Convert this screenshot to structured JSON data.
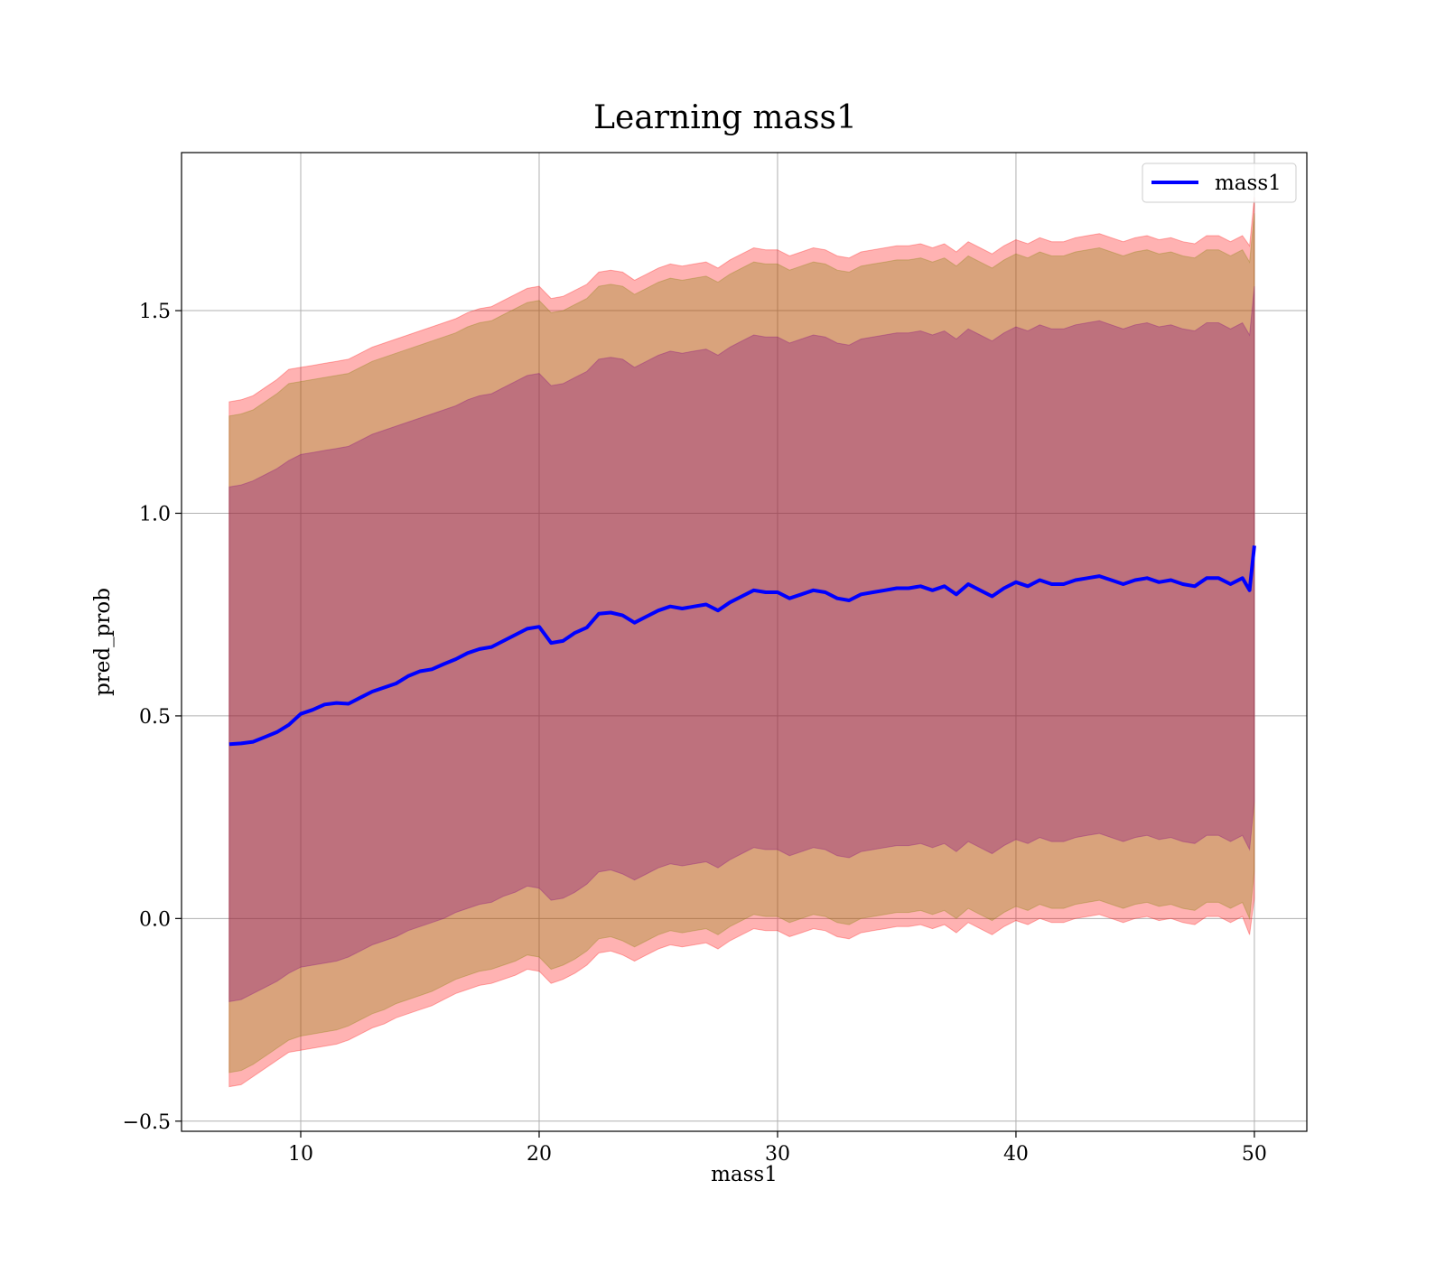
{
  "chart_data": {
    "type": "line",
    "title": "Learning mass1",
    "xlabel": "mass1",
    "ylabel": "pred_prob",
    "xlim": [
      5,
      52.2
    ],
    "ylim": [
      -0.525,
      1.89
    ],
    "xticks": [
      10,
      20,
      30,
      40,
      50
    ],
    "xtick_labels": [
      "10",
      "20",
      "30",
      "40",
      "50"
    ],
    "yticks": [
      -0.5,
      0.0,
      0.5,
      1.0,
      1.5
    ],
    "ytick_labels": [
      "−0.5",
      "0.0",
      "0.5",
      "1.0",
      "1.5"
    ],
    "grid": true,
    "legend": {
      "position": "top-right",
      "entries": [
        {
          "label": "mass1",
          "color": "#0000ff"
        }
      ]
    },
    "series": [
      {
        "name": "mass1",
        "color": "#0000ff",
        "x": [
          7,
          7.5,
          8,
          8.5,
          9,
          9.5,
          10,
          10.5,
          11,
          11.5,
          12,
          12.5,
          13,
          13.5,
          14,
          14.5,
          15,
          15.5,
          16,
          16.5,
          17,
          17.5,
          18,
          18.5,
          19,
          19.5,
          20,
          20.5,
          21,
          21.5,
          22,
          22.5,
          23,
          23.5,
          24,
          24.5,
          25,
          25.5,
          26,
          26.5,
          27,
          27.5,
          28,
          28.5,
          29,
          29.5,
          30,
          30.5,
          31,
          31.5,
          32,
          32.5,
          33,
          33.5,
          34,
          34.5,
          35,
          35.5,
          36,
          36.5,
          37,
          37.5,
          38,
          38.5,
          39,
          39.5,
          40,
          40.5,
          41,
          41.5,
          42,
          42.5,
          43,
          43.5,
          44,
          44.5,
          45,
          45.5,
          46,
          46.5,
          47,
          47.5,
          48,
          48.5,
          49,
          49.5,
          49.8,
          50
        ],
        "y": [
          0.43,
          0.432,
          0.436,
          0.448,
          0.46,
          0.478,
          0.505,
          0.515,
          0.528,
          0.532,
          0.53,
          0.545,
          0.56,
          0.57,
          0.58,
          0.598,
          0.61,
          0.615,
          0.628,
          0.64,
          0.655,
          0.665,
          0.67,
          0.685,
          0.7,
          0.715,
          0.72,
          0.68,
          0.685,
          0.705,
          0.718,
          0.752,
          0.755,
          0.748,
          0.73,
          0.745,
          0.76,
          0.77,
          0.765,
          0.77,
          0.775,
          0.76,
          0.78,
          0.795,
          0.81,
          0.805,
          0.805,
          0.79,
          0.8,
          0.81,
          0.805,
          0.79,
          0.785,
          0.8,
          0.805,
          0.81,
          0.815,
          0.815,
          0.82,
          0.81,
          0.82,
          0.8,
          0.825,
          0.81,
          0.795,
          0.815,
          0.83,
          0.82,
          0.835,
          0.825,
          0.825,
          0.835,
          0.84,
          0.845,
          0.835,
          0.825,
          0.835,
          0.84,
          0.83,
          0.835,
          0.825,
          0.82,
          0.84,
          0.84,
          0.825,
          0.84,
          0.81,
          0.92
        ]
      }
    ],
    "bands": [
      {
        "color": "#ff0000",
        "opacity": 0.3,
        "lower": [
          -0.415,
          -0.41,
          -0.39,
          -0.37,
          -0.35,
          -0.33,
          -0.325,
          -0.32,
          -0.315,
          -0.31,
          -0.3,
          -0.285,
          -0.27,
          -0.26,
          -0.245,
          -0.235,
          -0.225,
          -0.215,
          -0.2,
          -0.185,
          -0.175,
          -0.165,
          -0.16,
          -0.15,
          -0.14,
          -0.125,
          -0.13,
          -0.16,
          -0.15,
          -0.135,
          -0.115,
          -0.085,
          -0.08,
          -0.09,
          -0.105,
          -0.09,
          -0.075,
          -0.065,
          -0.07,
          -0.065,
          -0.06,
          -0.075,
          -0.055,
          -0.04,
          -0.025,
          -0.03,
          -0.03,
          -0.045,
          -0.035,
          -0.025,
          -0.03,
          -0.045,
          -0.05,
          -0.035,
          -0.03,
          -0.025,
          -0.02,
          -0.02,
          -0.015,
          -0.025,
          -0.015,
          -0.035,
          -0.01,
          -0.025,
          -0.04,
          -0.02,
          -0.005,
          -0.015,
          0.0,
          -0.01,
          -0.01,
          0.0,
          0.005,
          0.01,
          0.0,
          -0.01,
          0.0,
          0.005,
          -0.005,
          0.0,
          -0.01,
          -0.015,
          0.005,
          0.005,
          -0.01,
          0.005,
          -0.04,
          0.05
        ],
        "upper": [
          1.275,
          1.28,
          1.29,
          1.31,
          1.33,
          1.355,
          1.36,
          1.365,
          1.37,
          1.375,
          1.38,
          1.395,
          1.41,
          1.42,
          1.43,
          1.44,
          1.45,
          1.46,
          1.47,
          1.48,
          1.495,
          1.505,
          1.51,
          1.525,
          1.54,
          1.555,
          1.56,
          1.53,
          1.535,
          1.55,
          1.565,
          1.595,
          1.6,
          1.595,
          1.575,
          1.59,
          1.605,
          1.615,
          1.61,
          1.615,
          1.62,
          1.605,
          1.625,
          1.64,
          1.655,
          1.65,
          1.65,
          1.635,
          1.645,
          1.655,
          1.65,
          1.635,
          1.63,
          1.645,
          1.65,
          1.655,
          1.66,
          1.66,
          1.665,
          1.655,
          1.665,
          1.645,
          1.67,
          1.655,
          1.64,
          1.66,
          1.675,
          1.665,
          1.68,
          1.67,
          1.67,
          1.68,
          1.685,
          1.69,
          1.68,
          1.67,
          1.68,
          1.685,
          1.675,
          1.68,
          1.67,
          1.665,
          1.685,
          1.685,
          1.67,
          1.685,
          1.66,
          1.78
        ]
      },
      {
        "color": "#808000",
        "opacity": 0.3,
        "lower": [
          -0.38,
          -0.375,
          -0.36,
          -0.34,
          -0.32,
          -0.3,
          -0.29,
          -0.285,
          -0.28,
          -0.275,
          -0.265,
          -0.25,
          -0.235,
          -0.225,
          -0.21,
          -0.2,
          -0.19,
          -0.18,
          -0.165,
          -0.15,
          -0.14,
          -0.13,
          -0.125,
          -0.115,
          -0.105,
          -0.09,
          -0.095,
          -0.125,
          -0.115,
          -0.1,
          -0.08,
          -0.05,
          -0.045,
          -0.055,
          -0.07,
          -0.055,
          -0.04,
          -0.03,
          -0.035,
          -0.03,
          -0.025,
          -0.04,
          -0.02,
          -0.005,
          0.01,
          0.005,
          0.005,
          -0.01,
          0.0,
          0.01,
          0.005,
          -0.01,
          -0.015,
          0.0,
          0.005,
          0.01,
          0.015,
          0.015,
          0.02,
          0.01,
          0.02,
          0.0,
          0.025,
          0.01,
          -0.005,
          0.015,
          0.03,
          0.02,
          0.035,
          0.025,
          0.025,
          0.035,
          0.04,
          0.045,
          0.035,
          0.025,
          0.035,
          0.04,
          0.03,
          0.035,
          0.025,
          0.02,
          0.04,
          0.04,
          0.025,
          0.04,
          0.0,
          0.12
        ],
        "upper": [
          1.24,
          1.245,
          1.255,
          1.275,
          1.295,
          1.32,
          1.325,
          1.33,
          1.335,
          1.34,
          1.345,
          1.36,
          1.375,
          1.385,
          1.395,
          1.405,
          1.415,
          1.425,
          1.435,
          1.445,
          1.46,
          1.47,
          1.475,
          1.49,
          1.505,
          1.52,
          1.525,
          1.495,
          1.5,
          1.515,
          1.53,
          1.56,
          1.565,
          1.56,
          1.54,
          1.555,
          1.57,
          1.58,
          1.575,
          1.58,
          1.585,
          1.57,
          1.59,
          1.605,
          1.62,
          1.615,
          1.615,
          1.6,
          1.61,
          1.62,
          1.615,
          1.6,
          1.595,
          1.61,
          1.615,
          1.62,
          1.625,
          1.625,
          1.63,
          1.62,
          1.63,
          1.61,
          1.635,
          1.62,
          1.605,
          1.625,
          1.64,
          1.63,
          1.645,
          1.635,
          1.635,
          1.645,
          1.65,
          1.655,
          1.645,
          1.635,
          1.645,
          1.65,
          1.64,
          1.645,
          1.635,
          1.63,
          1.65,
          1.65,
          1.635,
          1.65,
          1.62,
          1.74
        ]
      },
      {
        "color": "#800080",
        "opacity": 0.3,
        "lower": [
          -0.205,
          -0.2,
          -0.185,
          -0.17,
          -0.155,
          -0.135,
          -0.12,
          -0.115,
          -0.11,
          -0.105,
          -0.095,
          -0.08,
          -0.065,
          -0.055,
          -0.045,
          -0.03,
          -0.02,
          -0.01,
          0.0,
          0.015,
          0.025,
          0.035,
          0.04,
          0.055,
          0.065,
          0.08,
          0.075,
          0.045,
          0.05,
          0.065,
          0.085,
          0.115,
          0.12,
          0.11,
          0.095,
          0.11,
          0.125,
          0.135,
          0.13,
          0.135,
          0.14,
          0.125,
          0.145,
          0.16,
          0.175,
          0.17,
          0.17,
          0.155,
          0.165,
          0.175,
          0.17,
          0.155,
          0.15,
          0.165,
          0.17,
          0.175,
          0.18,
          0.18,
          0.185,
          0.175,
          0.185,
          0.165,
          0.19,
          0.175,
          0.16,
          0.18,
          0.195,
          0.185,
          0.2,
          0.19,
          0.19,
          0.2,
          0.205,
          0.21,
          0.2,
          0.19,
          0.2,
          0.205,
          0.195,
          0.2,
          0.19,
          0.185,
          0.205,
          0.205,
          0.19,
          0.205,
          0.17,
          0.29
        ],
        "upper": [
          1.065,
          1.07,
          1.08,
          1.095,
          1.11,
          1.13,
          1.145,
          1.15,
          1.155,
          1.16,
          1.165,
          1.18,
          1.195,
          1.205,
          1.215,
          1.225,
          1.235,
          1.245,
          1.255,
          1.265,
          1.28,
          1.29,
          1.295,
          1.31,
          1.325,
          1.34,
          1.345,
          1.315,
          1.32,
          1.335,
          1.35,
          1.38,
          1.385,
          1.38,
          1.36,
          1.375,
          1.39,
          1.4,
          1.395,
          1.4,
          1.405,
          1.39,
          1.41,
          1.425,
          1.44,
          1.435,
          1.435,
          1.42,
          1.43,
          1.44,
          1.435,
          1.42,
          1.415,
          1.43,
          1.435,
          1.44,
          1.445,
          1.445,
          1.45,
          1.44,
          1.45,
          1.43,
          1.455,
          1.44,
          1.425,
          1.445,
          1.46,
          1.45,
          1.465,
          1.455,
          1.455,
          1.465,
          1.47,
          1.475,
          1.465,
          1.455,
          1.465,
          1.47,
          1.46,
          1.465,
          1.455,
          1.45,
          1.47,
          1.47,
          1.455,
          1.47,
          1.44,
          1.56
        ]
      }
    ]
  }
}
